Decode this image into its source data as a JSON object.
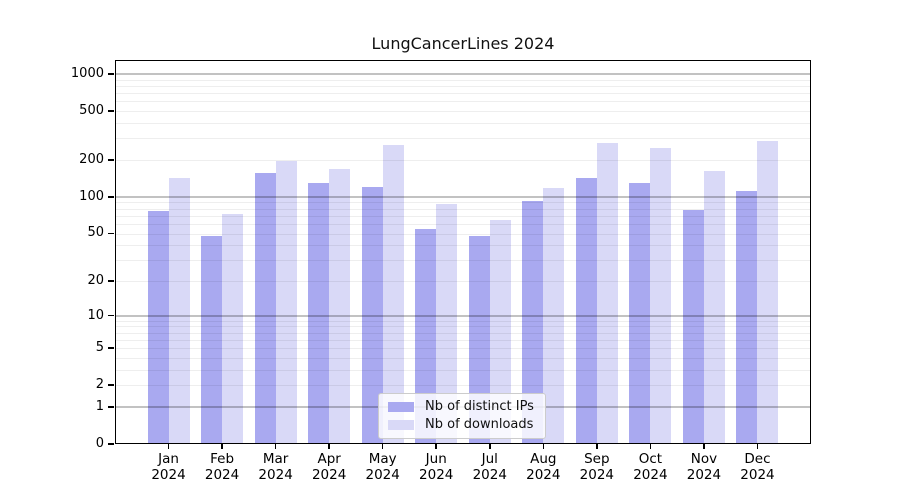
{
  "chart_data": {
    "type": "bar",
    "title": "LungCancerLines 2024",
    "categories": [
      "Jan",
      "Feb",
      "Mar",
      "Apr",
      "May",
      "Jun",
      "Jul",
      "Aug",
      "Sep",
      "Oct",
      "Nov",
      "Dec"
    ],
    "year_label": "2024",
    "series": [
      {
        "name": "Nb of distinct IPs",
        "color": "#a9a9f0",
        "values": [
          76,
          48,
          157,
          130,
          120,
          54,
          48,
          93,
          144,
          130,
          78,
          112
        ]
      },
      {
        "name": "Nb of downloads",
        "color": "#d9d9f7",
        "values": [
          143,
          72,
          197,
          170,
          266,
          88,
          65,
          118,
          275,
          252,
          164,
          287
        ]
      }
    ],
    "xlabel": "",
    "ylabel": "",
    "y_axis": {
      "scale": "log1p",
      "ylim": [
        0,
        1300
      ],
      "tick_values": [
        1000,
        500,
        200,
        100,
        50,
        20,
        10,
        5,
        2,
        1,
        0
      ],
      "tick_labels": [
        "1000",
        "500",
        "200",
        "100",
        "50",
        "20",
        "10",
        "5",
        "2",
        "1",
        "0"
      ],
      "major_gridlines": [
        1,
        10,
        100,
        1000
      ],
      "minor_gridlines": [
        2,
        3,
        4,
        5,
        6,
        7,
        8,
        9,
        20,
        30,
        40,
        50,
        60,
        70,
        80,
        90,
        200,
        300,
        400,
        500,
        600,
        700,
        800,
        900
      ]
    },
    "grid": true,
    "legend": {
      "position": "lower-center",
      "entries": [
        "Nb of distinct IPs",
        "Nb of downloads"
      ]
    }
  }
}
